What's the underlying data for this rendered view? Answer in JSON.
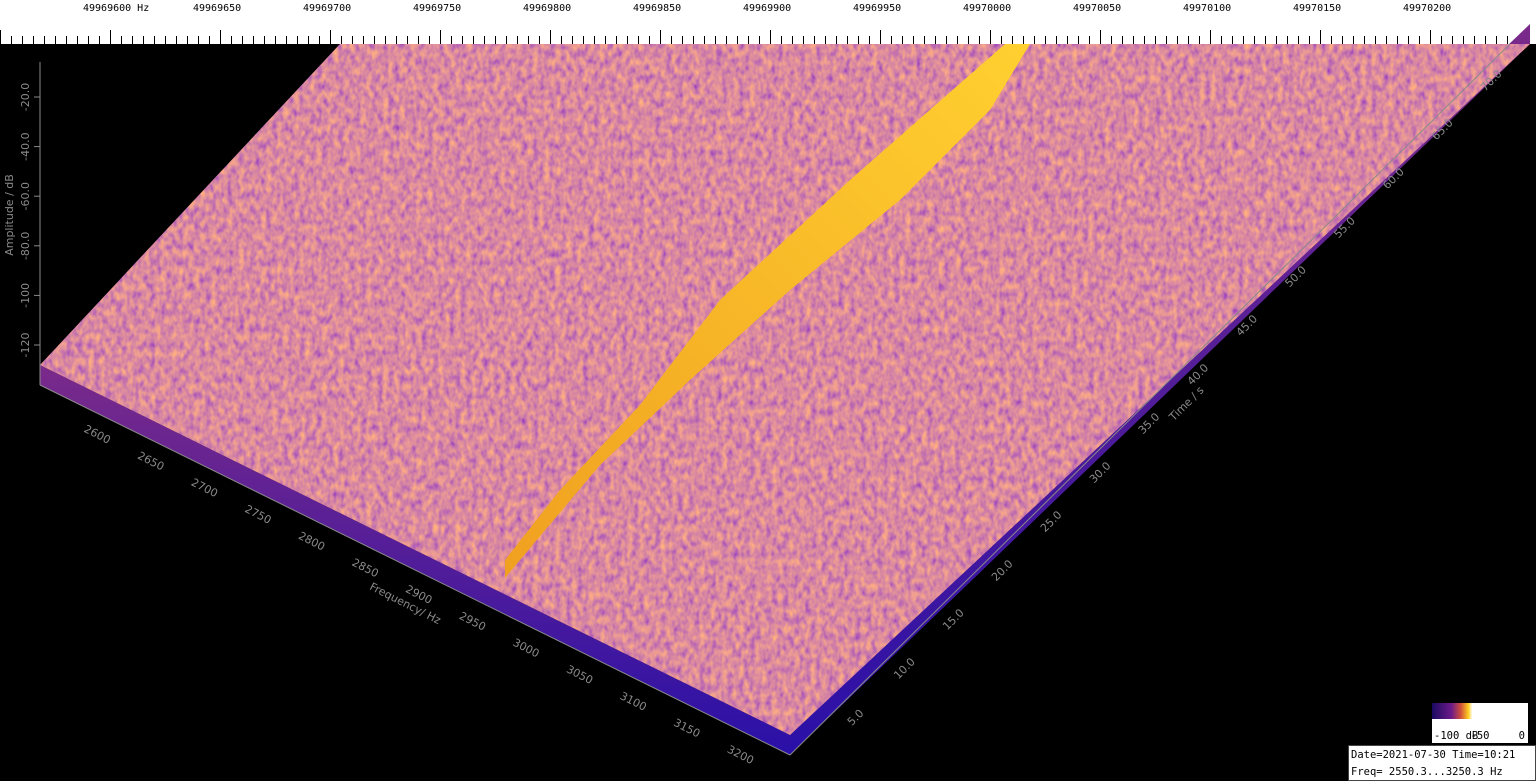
{
  "top_scale": {
    "labels": [
      "49969600 Hz",
      "49969650",
      "49969700",
      "49969750",
      "49969800",
      "49969850",
      "49969900",
      "49969950",
      "49970000",
      "49970050",
      "49970100",
      "49970150",
      "49970200"
    ]
  },
  "amplitude_axis": {
    "title": "Amplitude / dB",
    "labels": [
      "-20.0",
      "-40.0",
      "-60.0",
      "-80.0",
      "-100",
      "-120"
    ]
  },
  "frequency_axis": {
    "title": "Frequency/ Hz",
    "labels": [
      "2600",
      "2650",
      "2700",
      "2750",
      "2800",
      "2850",
      "2900",
      "2950",
      "3000",
      "3050",
      "3100",
      "3150",
      "3200"
    ]
  },
  "time_axis": {
    "title": "Time / s",
    "labels": [
      "5.0",
      "10.0",
      "15.0",
      "20.0",
      "25.0",
      "30.0",
      "35.0",
      "40.0",
      "45.0",
      "50.0",
      "55.0",
      "60.0",
      "65.0",
      "70.0"
    ]
  },
  "color_bar": {
    "labels": [
      "-100 dB",
      "-50",
      "0"
    ]
  },
  "info": {
    "lines": [
      "Date=2021-07-30 Time=10:21",
      "Freq= 2550.3...3250.3 Hz"
    ]
  }
}
